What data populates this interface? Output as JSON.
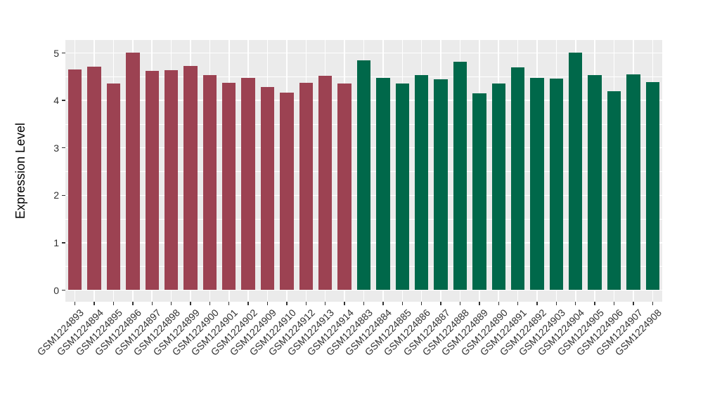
{
  "figure": {
    "background": "#ffffff",
    "panel_background": "#EBEBEB",
    "grid_color": "#ffffff",
    "tick_color": "#333333",
    "axis_text_color": "#303030"
  },
  "chart_data": {
    "type": "bar",
    "title": "",
    "xlabel": "",
    "ylabel": "Expression Level",
    "ylim": [
      0,
      5.26
    ],
    "yticks": [
      0,
      1,
      2,
      3,
      4,
      5
    ],
    "yticks_minor": [
      0.5,
      1.5,
      2.5,
      3.5,
      4.5
    ],
    "grid": true,
    "legend": false,
    "group_colors": {
      "red": "#9C4252",
      "green": "#00684A"
    },
    "categories": [
      "GSM1224893",
      "GSM1224894",
      "GSM1224895",
      "GSM1224896",
      "GSM1224897",
      "GSM1224898",
      "GSM1224899",
      "GSM1224900",
      "GSM1224901",
      "GSM1224902",
      "GSM1224909",
      "GSM1224910",
      "GSM1224912",
      "GSM1224913",
      "GSM1224914",
      "GSM1224883",
      "GSM1224884",
      "GSM1224885",
      "GSM1224886",
      "GSM1224887",
      "GSM1224888",
      "GSM1224889",
      "GSM1224890",
      "GSM1224891",
      "GSM1224892",
      "GSM1224903",
      "GSM1224904",
      "GSM1224905",
      "GSM1224906",
      "GSM1224907",
      "GSM1224908"
    ],
    "values": [
      4.65,
      4.71,
      4.36,
      5.01,
      4.62,
      4.64,
      4.72,
      4.54,
      4.37,
      4.48,
      4.28,
      4.16,
      4.37,
      4.52,
      4.36,
      4.84,
      4.48,
      4.36,
      4.53,
      4.45,
      4.82,
      4.15,
      4.36,
      4.69,
      4.48,
      4.46,
      5.01,
      4.53,
      4.19,
      4.55,
      4.38
    ],
    "groups": [
      "red",
      "red",
      "red",
      "red",
      "red",
      "red",
      "red",
      "red",
      "red",
      "red",
      "red",
      "red",
      "red",
      "red",
      "red",
      "green",
      "green",
      "green",
      "green",
      "green",
      "green",
      "green",
      "green",
      "green",
      "green",
      "green",
      "green",
      "green",
      "green",
      "green",
      "green"
    ]
  }
}
